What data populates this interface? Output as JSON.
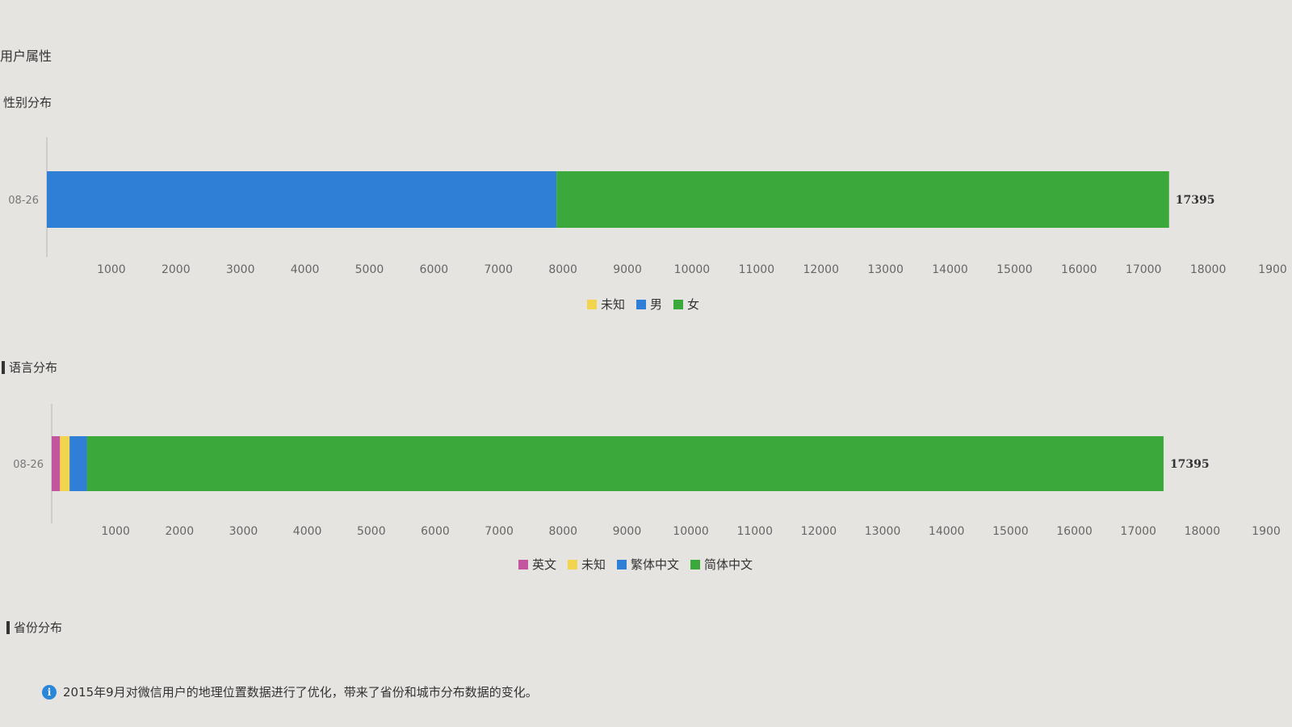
{
  "page": {
    "title": "用户属性"
  },
  "gender_section": {
    "heading": "性别分布"
  },
  "language_section": {
    "heading": "语言分布"
  },
  "province_section": {
    "heading": "省份分布"
  },
  "notice": {
    "icon": "info-icon",
    "text": "2015年9月对微信用户的地理位置数据进行了优化，带来了省份和城市分布数据的变化。"
  },
  "colors": {
    "unknown": "#f2d54c",
    "male": "#2f7fd6",
    "female": "#3aa83a",
    "english": "#c2559e",
    "traditional_chinese": "#2f7fd6",
    "simplified_chinese": "#3aa83a"
  },
  "chart_data": [
    {
      "type": "bar",
      "orientation": "horizontal",
      "stacked": true,
      "categories": [
        "08-26"
      ],
      "series": [
        {
          "name": "未知",
          "values": [
            0
          ],
          "color": "#f2d54c"
        },
        {
          "name": "男",
          "values": [
            7900
          ],
          "color": "#2f7fd6"
        },
        {
          "name": "女",
          "values": [
            9495
          ],
          "color": "#3aa83a"
        }
      ],
      "total_labels": [
        "17395"
      ],
      "x_ticks": [
        "1000",
        "2000",
        "3000",
        "4000",
        "5000",
        "6000",
        "7000",
        "8000",
        "9000",
        "10000",
        "11000",
        "12000",
        "13000",
        "14000",
        "15000",
        "16000",
        "17000",
        "18000",
        "1900"
      ],
      "xlim": [
        0,
        19000
      ],
      "legend_position": "bottom-center",
      "legend": [
        "未知",
        "男",
        "女"
      ]
    },
    {
      "type": "bar",
      "orientation": "horizontal",
      "stacked": true,
      "categories": [
        "08-26"
      ],
      "series": [
        {
          "name": "英文",
          "values": [
            130
          ],
          "color": "#c2559e"
        },
        {
          "name": "未知",
          "values": [
            150
          ],
          "color": "#f2d54c"
        },
        {
          "name": "繁体中文",
          "values": [
            270
          ],
          "color": "#2f7fd6"
        },
        {
          "name": "简体中文",
          "values": [
            16845
          ],
          "color": "#3aa83a"
        }
      ],
      "total_labels": [
        "17395"
      ],
      "x_ticks": [
        "1000",
        "2000",
        "3000",
        "4000",
        "5000",
        "6000",
        "7000",
        "8000",
        "9000",
        "10000",
        "11000",
        "12000",
        "13000",
        "14000",
        "15000",
        "16000",
        "17000",
        "18000",
        "1900"
      ],
      "xlim": [
        0,
        19000
      ],
      "legend_position": "bottom-center",
      "legend": [
        "英文",
        "未知",
        "繁体中文",
        "简体中文"
      ]
    }
  ]
}
